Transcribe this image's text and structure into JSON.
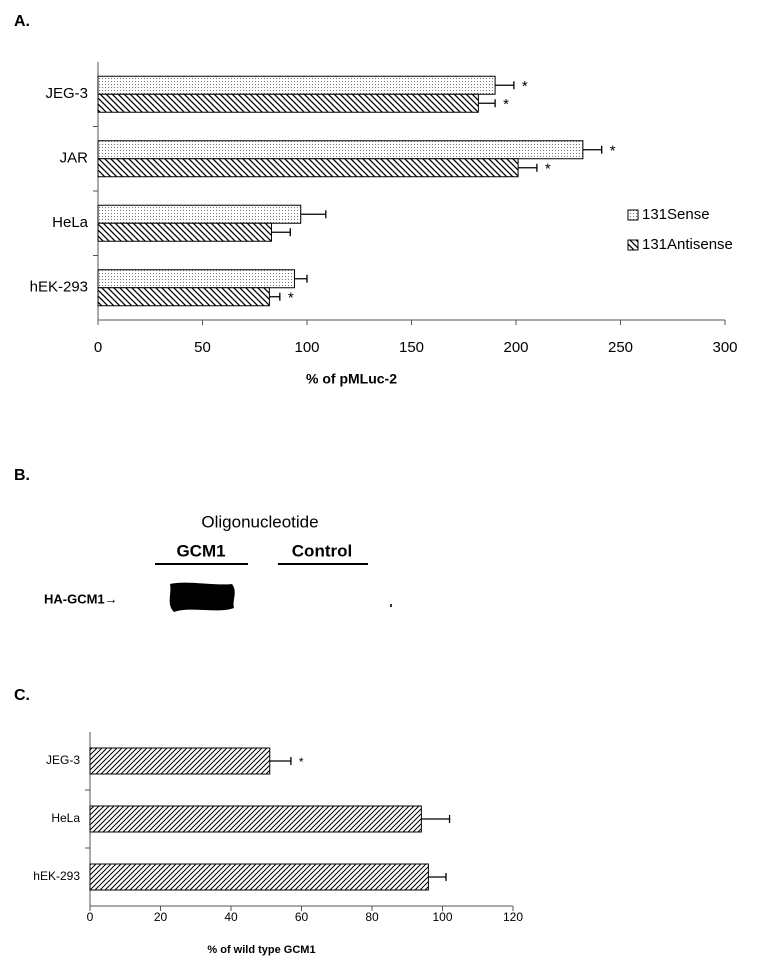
{
  "panel_labels": [
    "A.",
    "B.",
    "C."
  ],
  "blot": {
    "title": "Oligonucleotide",
    "lanes": [
      "GCM1",
      "Control"
    ],
    "band_label": "HA-GCM1→"
  },
  "chart_data": [
    {
      "type": "hbar",
      "categories": [
        "JEG-3",
        "JAR",
        "HeLa",
        "hEK-293"
      ],
      "series": [
        {
          "name": "131Sense",
          "pattern": "dots",
          "values": [
            190,
            232,
            97,
            94
          ],
          "errors": [
            9,
            9,
            12,
            6
          ],
          "markers": [
            "*",
            "*",
            null,
            null
          ]
        },
        {
          "name": "131Antisense",
          "pattern": "backslash",
          "values": [
            182,
            201,
            83,
            82
          ],
          "errors": [
            8,
            9,
            9,
            5
          ],
          "markers": [
            "*",
            "*",
            null,
            "*"
          ]
        }
      ],
      "xlabel": "% of pMLuc-2",
      "xlim": [
        0,
        300
      ],
      "xticks": [
        0,
        50,
        100,
        150,
        200,
        250,
        300
      ],
      "legend": "right"
    },
    {
      "type": "hbar",
      "categories": [
        "JEG-3",
        "HeLa",
        "hEK-293"
      ],
      "series": [
        {
          "pattern": "slash",
          "values": [
            51,
            94,
            96
          ],
          "errors": [
            6,
            8,
            5
          ],
          "markers": [
            "*",
            null,
            null
          ]
        }
      ],
      "xlabel": "% of wild type GCM1",
      "xlim": [
        0,
        120
      ],
      "xticks": [
        0,
        20,
        40,
        60,
        80,
        100,
        120
      ]
    }
  ]
}
